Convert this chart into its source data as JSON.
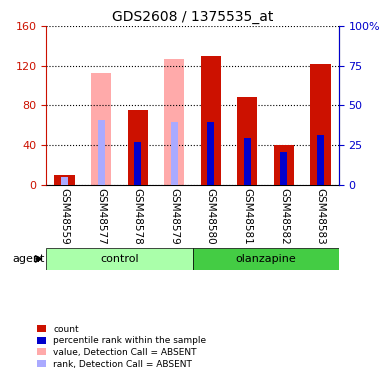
{
  "title": "GDS2608 / 1375535_at",
  "samples": [
    "GSM48559",
    "GSM48577",
    "GSM48578",
    "GSM48579",
    "GSM48580",
    "GSM48581",
    "GSM48582",
    "GSM48583"
  ],
  "groups": [
    "control",
    "control",
    "control",
    "control",
    "olanzapine",
    "olanzapine",
    "olanzapine",
    "olanzapine"
  ],
  "group_colors": {
    "control": "#aaffaa",
    "olanzapine": "#44cc44"
  },
  "absent": [
    true,
    true,
    false,
    true,
    false,
    false,
    false,
    false
  ],
  "red_values": [
    10,
    0,
    75,
    0,
    130,
    88,
    40,
    122
  ],
  "pink_values": [
    10,
    113,
    0,
    127,
    0,
    0,
    0,
    0
  ],
  "blue_values": [
    0,
    0,
    43,
    0,
    63,
    47,
    33,
    50
  ],
  "lblue_values": [
    8,
    65,
    0,
    63,
    0,
    0,
    0,
    0
  ],
  "ylim_left": [
    0,
    160
  ],
  "ylim_right": [
    0,
    100
  ],
  "yticks_left": [
    0,
    40,
    80,
    120,
    160
  ],
  "ytick_labels_left": [
    "0",
    "40",
    "80",
    "120",
    "160"
  ],
  "yticks_right": [
    0,
    25,
    50,
    75,
    100
  ],
  "ytick_labels_right": [
    "0",
    "25",
    "50",
    "75",
    "100%"
  ],
  "color_red": "#cc1100",
  "color_pink": "#ffaaaa",
  "color_blue": "#0000cc",
  "color_lblue": "#aaaaff",
  "bar_width": 0.55,
  "grid_color": "#000000",
  "agent_label": "agent"
}
